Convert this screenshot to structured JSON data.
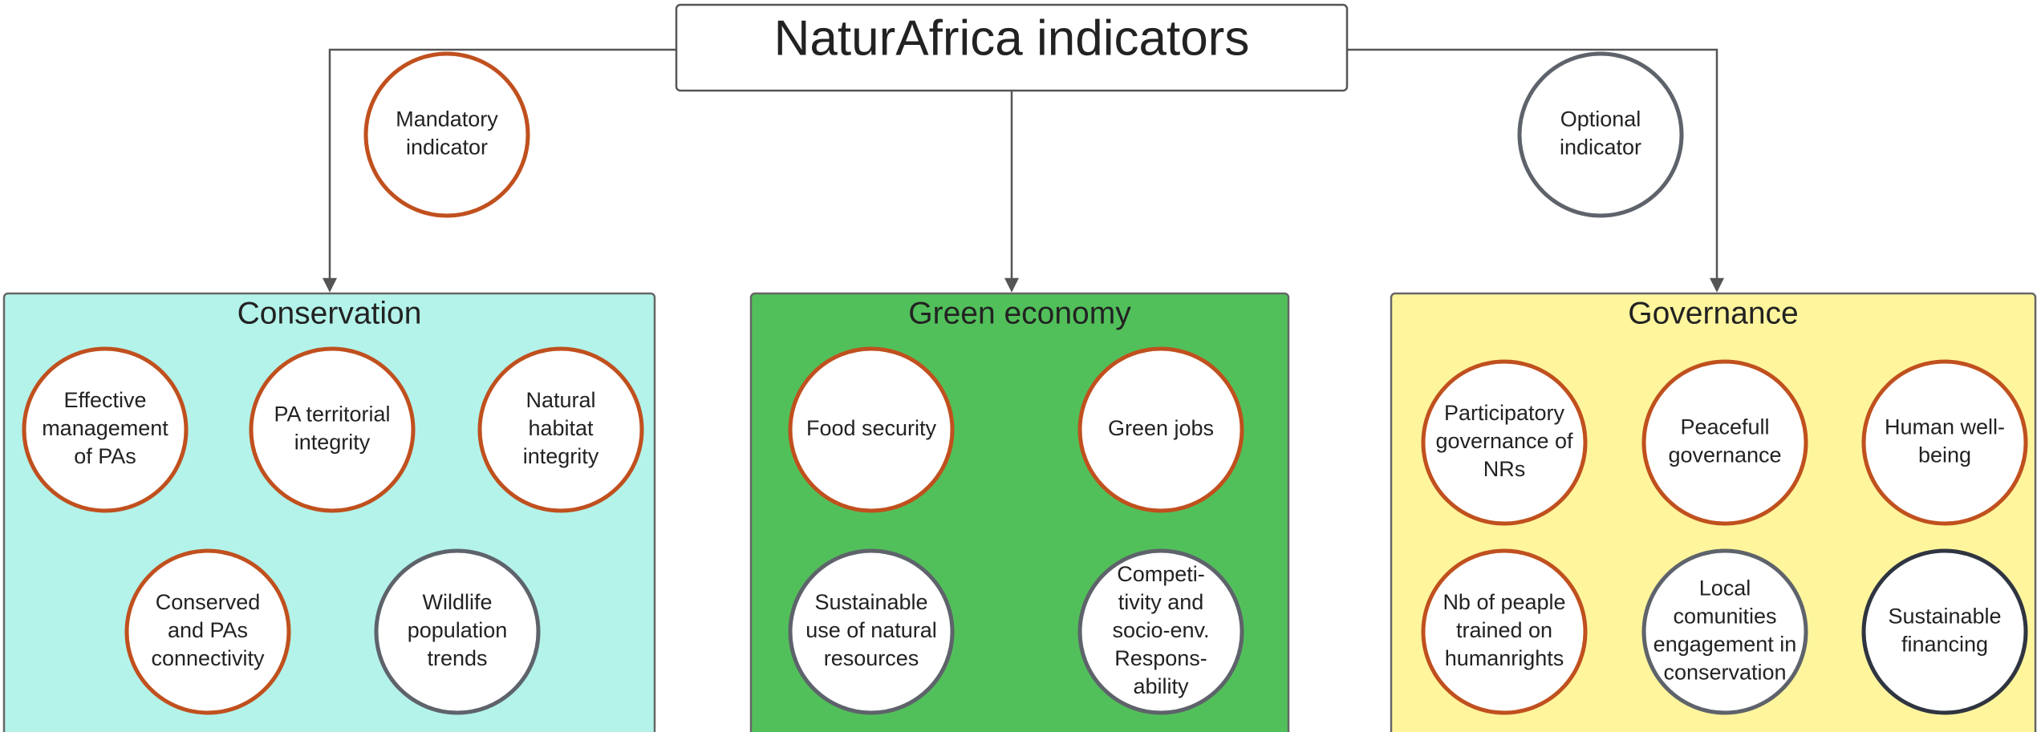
{
  "title": "NaturAfrica indicators",
  "legend": [
    {
      "lines": [
        "Mandatory",
        "indicator"
      ],
      "color": "#c0501e"
    },
    {
      "lines": [
        "Optional",
        "indicator"
      ],
      "color": "#5e636b"
    }
  ],
  "groups": [
    {
      "title": "Conservation",
      "fill": "#b3f3ea",
      "indicators": [
        {
          "lines": [
            "Effective",
            "management",
            "of PAs"
          ],
          "color": "#c0501e"
        },
        {
          "lines": [
            "PA territorial",
            "integrity"
          ],
          "color": "#c0501e"
        },
        {
          "lines": [
            "Natural",
            "habitat",
            "integrity"
          ],
          "color": "#c0501e"
        },
        {
          "lines": [
            "Conserved",
            "and PAs",
            "connectivity"
          ],
          "color": "#c0501e"
        },
        {
          "lines": [
            "Wildlife",
            "population",
            "trends"
          ],
          "color": "#5e636b"
        }
      ]
    },
    {
      "title": "Green economy",
      "fill": "#52c05a",
      "indicators": [
        {
          "lines": [
            "Food security"
          ],
          "color": "#c0501e"
        },
        {
          "lines": [
            "Green jobs"
          ],
          "color": "#c0501e"
        },
        {
          "lines": [
            "Sustainable",
            "use of natural",
            "resources"
          ],
          "color": "#5e636b"
        },
        {
          "lines": [
            "Competi-",
            "tivity and",
            "socio-env.",
            "Respons-",
            "ability"
          ],
          "color": "#5e636b"
        }
      ]
    },
    {
      "title": "Governance",
      "fill": "#fff59d",
      "indicators": [
        {
          "lines": [
            "Participatory",
            "governance of",
            "NRs"
          ],
          "color": "#c0501e"
        },
        {
          "lines": [
            "Peacefull",
            "governance"
          ],
          "color": "#c0501e"
        },
        {
          "lines": [
            "Human well-",
            "being"
          ],
          "color": "#c0501e"
        },
        {
          "lines": [
            "Nb of peaple",
            "trained on",
            "humanrights"
          ],
          "color": "#c0501e"
        },
        {
          "lines": [
            "Local",
            "comunities",
            "engagement in",
            "conservation"
          ],
          "color": "#5e636b"
        },
        {
          "lines": [
            "Sustainable",
            "financing"
          ],
          "color": "#2f3540"
        }
      ]
    }
  ]
}
